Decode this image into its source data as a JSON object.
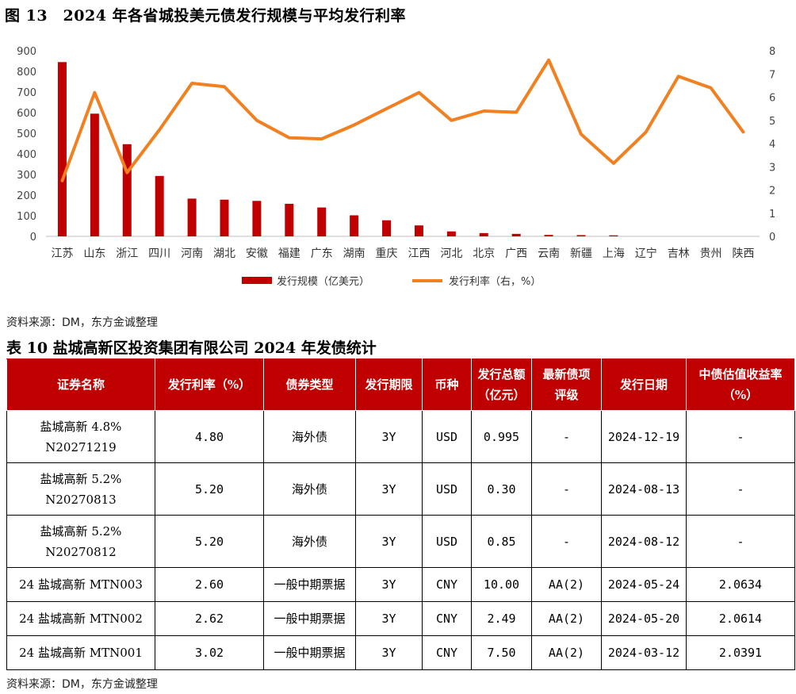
{
  "figure": {
    "title": "图 13　2024 年各省城投美元债发行规模与平均发行利率",
    "source": "资料来源：DM，东方金诚整理"
  },
  "chart_data": {
    "type": "bar+line",
    "categories": [
      "江苏",
      "山东",
      "浙江",
      "四川",
      "河南",
      "湖北",
      "安徽",
      "福建",
      "广东",
      "湖南",
      "重庆",
      "江西",
      "河北",
      "北京",
      "广西",
      "云南",
      "新疆",
      "上海",
      "辽宁",
      "吉林",
      "贵州",
      "陕西"
    ],
    "series": [
      {
        "name": "发行规模（亿美元）",
        "type": "bar",
        "axis": "left",
        "color": "#c00000",
        "values": [
          845,
          595,
          447,
          293,
          183,
          178,
          172,
          158,
          140,
          102,
          78,
          53,
          24,
          16,
          12,
          7,
          6,
          5,
          0,
          0,
          0,
          0
        ]
      },
      {
        "name": "发行利率（右，%）",
        "type": "line",
        "axis": "right",
        "color": "#f08020",
        "values": [
          2.4,
          6.2,
          2.75,
          4.6,
          6.6,
          6.45,
          5.0,
          4.25,
          4.2,
          4.8,
          5.5,
          6.2,
          5.0,
          5.4,
          5.35,
          7.6,
          4.4,
          3.15,
          4.5,
          6.9,
          6.4,
          4.5
        ]
      }
    ],
    "y_left": {
      "min": 0,
      "max": 900,
      "ticks": [
        0,
        100,
        200,
        300,
        400,
        500,
        600,
        700,
        800,
        900
      ]
    },
    "y_right": {
      "min": 0,
      "max": 8,
      "ticks": [
        0,
        1,
        2,
        3,
        4,
        5,
        6,
        7,
        8
      ]
    },
    "legend": [
      "发行规模（亿美元）",
      "发行利率（右，%）"
    ],
    "legend_position": "bottom",
    "grid": false
  },
  "table": {
    "title": "表 10  盐城高新区投资集团有限公司 2024 年发债统计",
    "headers": [
      [
        "证券名称"
      ],
      [
        "发行利率（%）"
      ],
      [
        "债券类型"
      ],
      [
        "发行期限"
      ],
      [
        "币种"
      ],
      [
        "发行总额",
        "（亿元）"
      ],
      [
        "最新债项",
        "评级"
      ],
      [
        "发行日期"
      ],
      [
        "中债估值收益率",
        "（%）"
      ]
    ],
    "rows": [
      {
        "name": [
          "盐城高新 4.8%",
          "N20271219"
        ],
        "rate": "4.80",
        "type": "海外债",
        "term": "3Y",
        "currency": "USD",
        "amount": "0.995",
        "rating": "-",
        "date": "2024-12-19",
        "yield": "-"
      },
      {
        "name": [
          "盐城高新 5.2%",
          "N20270813"
        ],
        "rate": "5.20",
        "type": "海外债",
        "term": "3Y",
        "currency": "USD",
        "amount": "0.30",
        "rating": "-",
        "date": "2024-08-13",
        "yield": "-"
      },
      {
        "name": [
          "盐城高新 5.2%",
          "N20270812"
        ],
        "rate": "5.20",
        "type": "海外债",
        "term": "3Y",
        "currency": "USD",
        "amount": "0.85",
        "rating": "-",
        "date": "2024-08-12",
        "yield": "-"
      },
      {
        "name": [
          "24 盐城高新 MTN003"
        ],
        "rate": "2.60",
        "type": "一般中期票据",
        "term": "3Y",
        "currency": "CNY",
        "amount": "10.00",
        "rating": "AA(2)",
        "date": "2024-05-24",
        "yield": "2.0634"
      },
      {
        "name": [
          "24 盐城高新 MTN002"
        ],
        "rate": "2.62",
        "type": "一般中期票据",
        "term": "3Y",
        "currency": "CNY",
        "amount": "2.49",
        "rating": "AA(2)",
        "date": "2024-05-20",
        "yield": "2.0614"
      },
      {
        "name": [
          "24 盐城高新 MTN001"
        ],
        "rate": "3.02",
        "type": "一般中期票据",
        "term": "3Y",
        "currency": "CNY",
        "amount": "7.50",
        "rating": "AA(2)",
        "date": "2024-03-12",
        "yield": "2.0391"
      }
    ],
    "source": "资料来源：DM，东方金诚整理"
  }
}
